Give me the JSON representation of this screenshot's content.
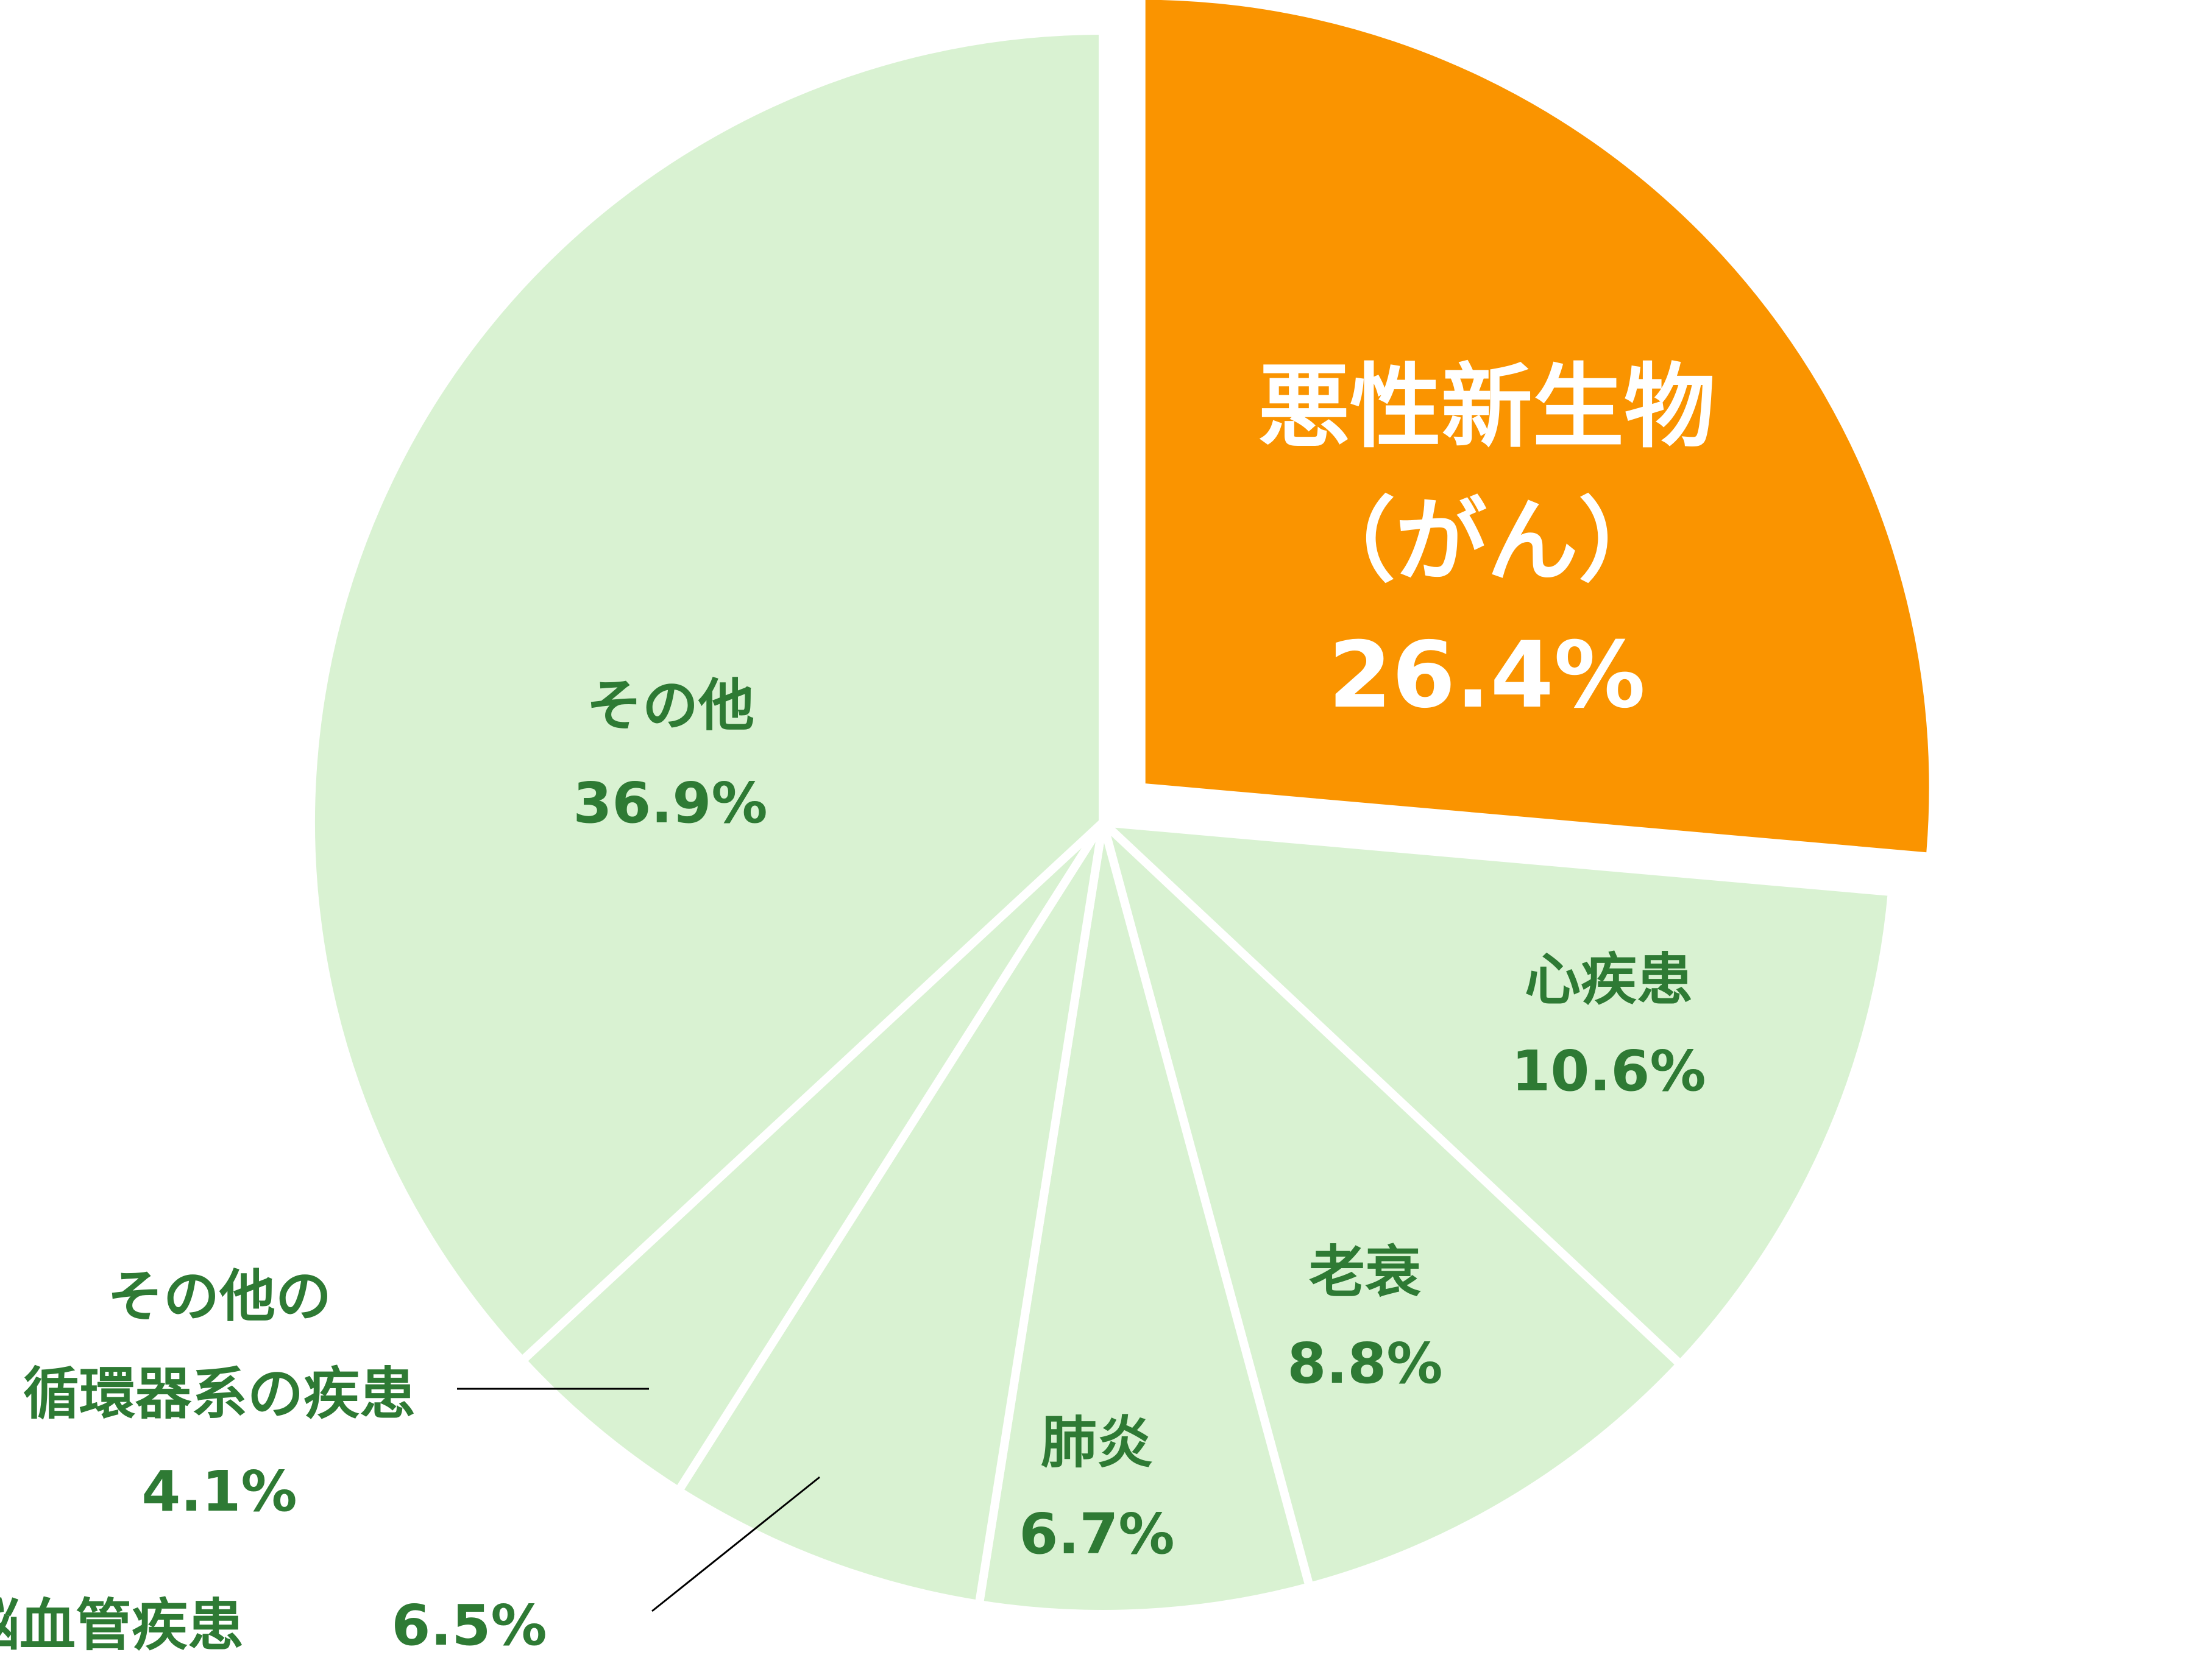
{
  "chart_data": {
    "type": "pie",
    "title": "",
    "start_angle_deg_clockwise_from_top": 0,
    "slices": [
      {
        "label": "悪性新生物\n（がん）",
        "value": 26.4,
        "value_label": "26.4%",
        "color": "#fa9400",
        "exploded": true
      },
      {
        "label": "心疾患",
        "value": 10.6,
        "value_label": "10.6%",
        "color": "#d9f2d2",
        "exploded": false
      },
      {
        "label": "老衰",
        "value": 8.8,
        "value_label": "8.8%",
        "color": "#d9f2d2",
        "exploded": false
      },
      {
        "label": "肺炎",
        "value": 6.7,
        "value_label": "6.7%",
        "color": "#d9f2d2",
        "exploded": false
      },
      {
        "label": "脳血管疾患",
        "value": 6.5,
        "value_label": "6.5%",
        "color": "#d9f2d2",
        "exploded": false
      },
      {
        "label": "その他の\n循環器系の疾患",
        "value": 4.1,
        "value_label": "4.1%",
        "color": "#d9f2d2",
        "exploded": false
      },
      {
        "label": "その他",
        "value": 36.9,
        "value_label": "36.9%",
        "color": "#d9f2d2",
        "exploded": false
      }
    ],
    "separator_color": "#ffffff",
    "label_color": "#2e7a34",
    "highlight_label_color": "#ffffff",
    "leader_line_color": "#000000"
  }
}
